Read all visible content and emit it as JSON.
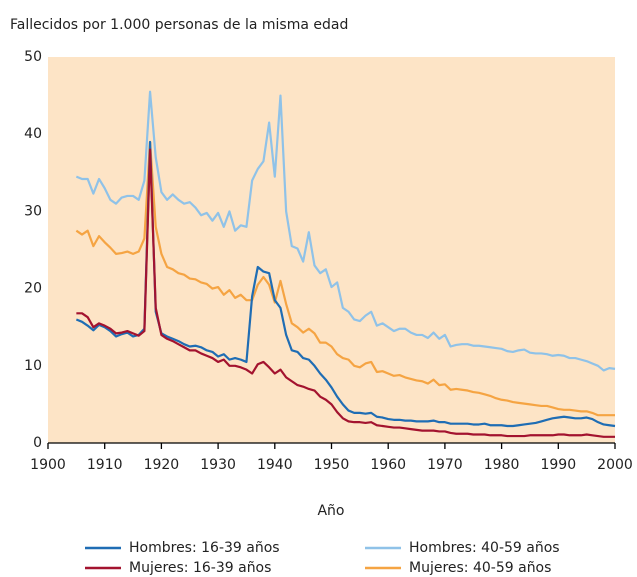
{
  "chart_data": {
    "type": "line",
    "title": "Fallecidos por 1.000 personas de la misma edad",
    "x_label": "Año",
    "x": [
      1905,
      1906,
      1907,
      1908,
      1909,
      1910,
      1911,
      1912,
      1913,
      1914,
      1915,
      1916,
      1917,
      1918,
      1919,
      1920,
      1921,
      1922,
      1923,
      1924,
      1925,
      1926,
      1927,
      1928,
      1929,
      1930,
      1931,
      1932,
      1933,
      1934,
      1935,
      1936,
      1937,
      1938,
      1939,
      1940,
      1941,
      1942,
      1943,
      1944,
      1945,
      1946,
      1947,
      1948,
      1949,
      1950,
      1951,
      1952,
      1953,
      1954,
      1955,
      1956,
      1957,
      1958,
      1959,
      1960,
      1961,
      1962,
      1963,
      1964,
      1965,
      1966,
      1967,
      1968,
      1969,
      1970,
      1971,
      1972,
      1973,
      1974,
      1975,
      1976,
      1977,
      1978,
      1979,
      1980,
      1981,
      1982,
      1983,
      1984,
      1985,
      1986,
      1987,
      1988,
      1989,
      1990,
      1991,
      1992,
      1993,
      1994,
      1995,
      1996,
      1997,
      1998,
      1999,
      2000
    ],
    "series": [
      {
        "name": "Hombres: 16-39 años",
        "color": "#1f6db4",
        "values": [
          16,
          15.7,
          15.2,
          14.6,
          15.3,
          15,
          14.5,
          13.8,
          14.1,
          14.3,
          13.8,
          14,
          14.8,
          39,
          17,
          14.2,
          13.8,
          13.5,
          13.2,
          12.8,
          12.5,
          12.6,
          12.4,
          12,
          11.8,
          11.2,
          11.5,
          10.8,
          11,
          10.8,
          10.5,
          19,
          22.8,
          22.2,
          22,
          18.5,
          17.5,
          14,
          12,
          11.8,
          11,
          10.8,
          10,
          9,
          8.2,
          7.2,
          6,
          5,
          4.2,
          3.9,
          3.9,
          3.8,
          3.9,
          3.4,
          3.3,
          3.1,
          3,
          3,
          2.9,
          2.9,
          2.8,
          2.8,
          2.8,
          2.9,
          2.7,
          2.7,
          2.5,
          2.5,
          2.5,
          2.5,
          2.4,
          2.4,
          2.5,
          2.3,
          2.3,
          2.3,
          2.2,
          2.2,
          2.3,
          2.4,
          2.5,
          2.6,
          2.8,
          3,
          3.2,
          3.3,
          3.4,
          3.3,
          3.2,
          3.2,
          3.3,
          3.1,
          2.7,
          2.4,
          2.3,
          2.2
        ]
      },
      {
        "name": "Hombres: 40-59 años",
        "color": "#8fc2e8",
        "values": [
          34.5,
          34.2,
          34.2,
          32.3,
          34.2,
          33,
          31.5,
          31,
          31.8,
          32,
          32,
          31.5,
          34,
          45.5,
          37,
          32.5,
          31.5,
          32.2,
          31.5,
          31,
          31.2,
          30.5,
          29.5,
          29.8,
          28.8,
          29.8,
          28,
          30,
          27.5,
          28.2,
          28,
          34,
          35.5,
          36.5,
          41.5,
          34.5,
          45,
          30,
          25.5,
          25.2,
          23.5,
          27.3,
          23,
          22,
          22.5,
          20.2,
          20.8,
          17.5,
          17,
          16,
          15.8,
          16.5,
          17,
          15.2,
          15.5,
          15,
          14.5,
          14.8,
          14.8,
          14.3,
          14,
          14,
          13.6,
          14.3,
          13.5,
          14,
          12.5,
          12.7,
          12.8,
          12.8,
          12.6,
          12.6,
          12.5,
          12.4,
          12.3,
          12.2,
          11.9,
          11.8,
          12,
          12.1,
          11.7,
          11.6,
          11.6,
          11.5,
          11.3,
          11.4,
          11.3,
          11,
          11,
          10.8,
          10.6,
          10.3,
          10,
          9.4,
          9.7,
          9.6
        ]
      },
      {
        "name": "Mujeres: 16-39 años",
        "color": "#a3132f",
        "values": [
          16.8,
          16.8,
          16.3,
          15,
          15.5,
          15.2,
          14.8,
          14.2,
          14.3,
          14.5,
          14.2,
          13.9,
          14.5,
          38,
          17.5,
          14,
          13.5,
          13.2,
          12.8,
          12.4,
          12,
          12,
          11.6,
          11.3,
          11,
          10.5,
          10.8,
          10,
          10,
          9.8,
          9.5,
          9,
          10.2,
          10.5,
          9.8,
          9,
          9.5,
          8.5,
          8,
          7.5,
          7.3,
          7,
          6.8,
          6,
          5.6,
          5,
          4,
          3.2,
          2.8,
          2.7,
          2.7,
          2.6,
          2.7,
          2.3,
          2.2,
          2.1,
          2,
          2,
          1.9,
          1.8,
          1.7,
          1.6,
          1.6,
          1.6,
          1.5,
          1.5,
          1.3,
          1.2,
          1.2,
          1.2,
          1.1,
          1.1,
          1.1,
          1,
          1,
          1,
          0.9,
          0.9,
          0.9,
          0.9,
          1,
          1,
          1,
          1,
          1,
          1.1,
          1.1,
          1,
          1,
          1,
          1.1,
          1,
          0.9,
          0.8,
          0.8,
          0.8
        ]
      },
      {
        "name": "Mujeres: 40-59 años",
        "color": "#f5a443",
        "values": [
          27.5,
          27,
          27.5,
          25.5,
          26.8,
          26,
          25.3,
          24.5,
          24.6,
          24.8,
          24.5,
          24.8,
          26.5,
          39,
          28,
          24.5,
          22.8,
          22.5,
          22,
          21.8,
          21.3,
          21.2,
          20.8,
          20.6,
          20,
          20.2,
          19.2,
          19.8,
          18.8,
          19.2,
          18.5,
          18.5,
          20.5,
          21.5,
          20.5,
          18.2,
          21,
          18,
          15.5,
          15,
          14.3,
          14.8,
          14.2,
          13,
          13,
          12.5,
          11.5,
          11,
          10.8,
          10,
          9.8,
          10.3,
          10.5,
          9.2,
          9.3,
          9,
          8.7,
          8.8,
          8.5,
          8.3,
          8.1,
          8,
          7.7,
          8.2,
          7.5,
          7.6,
          6.9,
          7,
          6.9,
          6.8,
          6.6,
          6.5,
          6.3,
          6.1,
          5.8,
          5.6,
          5.5,
          5.3,
          5.2,
          5.1,
          5,
          4.9,
          4.8,
          4.8,
          4.6,
          4.4,
          4.3,
          4.3,
          4.2,
          4.1,
          4.1,
          3.9,
          3.6,
          3.6,
          3.6,
          3.6
        ]
      }
    ],
    "xlim": [
      1900,
      2000
    ],
    "xticks": [
      1900,
      1910,
      1920,
      1930,
      1940,
      1950,
      1960,
      1970,
      1980,
      1990,
      2000
    ],
    "ylim": [
      0,
      50
    ],
    "yticks": [
      0,
      10,
      20,
      30,
      40,
      50
    ],
    "plot_background": "#fde4c6",
    "draw_order": [
      1,
      3,
      0,
      2
    ]
  }
}
